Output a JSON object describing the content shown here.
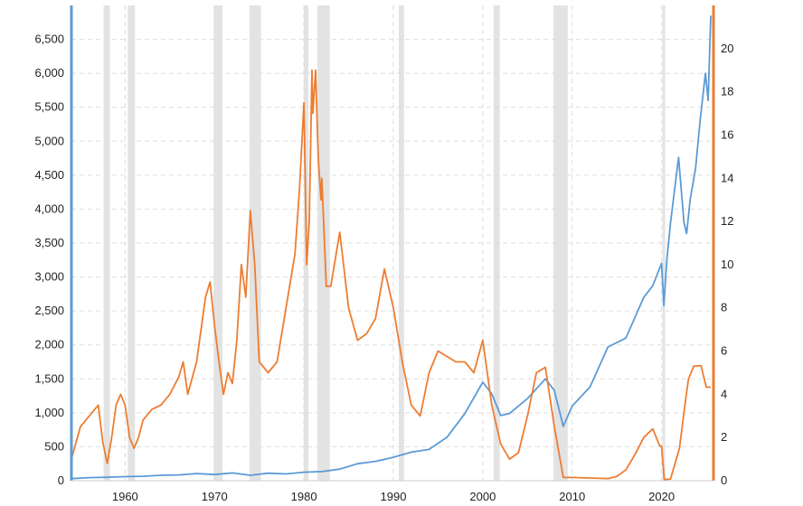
{
  "chart_data": {
    "type": "line",
    "title": "",
    "xlabel": "",
    "ylabel": "",
    "xlim": [
      1954,
      2025.8
    ],
    "ylim_left": [
      0,
      7000
    ],
    "ylim_right": [
      0,
      22
    ],
    "grid": true,
    "legend": "none",
    "x_ticks": [
      1960,
      1970,
      1980,
      1990,
      2000,
      2010,
      2020
    ],
    "y_left_ticks": [
      0,
      500,
      1000,
      1500,
      2000,
      2500,
      3000,
      3500,
      4000,
      4500,
      5000,
      5500,
      6000,
      6500
    ],
    "y_left_tick_labels": [
      "0",
      "500",
      "1,000",
      "1,500",
      "2,000",
      "2,500",
      "3,000",
      "3,500",
      "4,000",
      "4,500",
      "5,000",
      "5,500",
      "6,000",
      "6,500"
    ],
    "y_right_ticks": [
      0,
      2,
      4,
      6,
      8,
      10,
      12,
      14,
      16,
      18,
      20
    ],
    "recessions": [
      [
        1957.6,
        1958.3
      ],
      [
        1960.3,
        1961.1
      ],
      [
        1969.9,
        1970.9
      ],
      [
        1973.9,
        1975.2
      ],
      [
        1980.0,
        1980.5
      ],
      [
        1981.5,
        1982.9
      ],
      [
        1990.6,
        1991.2
      ],
      [
        2001.2,
        2001.9
      ],
      [
        2007.9,
        2009.5
      ],
      [
        2020.1,
        2020.4
      ]
    ],
    "series": [
      {
        "axis": "left",
        "color": "#5b9bd5",
        "x": [
          1954,
          1956,
          1958,
          1960,
          1962,
          1964,
          1966,
          1968,
          1970,
          1972,
          1974,
          1976,
          1978,
          1980,
          1982,
          1984,
          1986,
          1988,
          1990,
          1992,
          1994,
          1996,
          1998,
          2000,
          2001,
          2002,
          2003,
          2005,
          2007,
          2008,
          2009,
          2010,
          2012,
          2014,
          2016,
          2018,
          2019,
          2020,
          2020.25,
          2020.6,
          2021,
          2021.9,
          2022.5,
          2022.8,
          2023.2,
          2023.8,
          2024.3,
          2024.9,
          2025.2,
          2025.5
        ],
        "values": [
          30,
          45,
          50,
          60,
          65,
          80,
          85,
          105,
          90,
          115,
          80,
          110,
          100,
          125,
          135,
          170,
          250,
          285,
          345,
          420,
          460,
          640,
          990,
          1450,
          1280,
          960,
          990,
          1210,
          1500,
          1330,
          800,
          1100,
          1380,
          1970,
          2100,
          2700,
          2870,
          3200,
          2580,
          3280,
          3800,
          4760,
          3800,
          3640,
          4150,
          4600,
          5300,
          6000,
          5600,
          6850
        ]
      },
      {
        "axis": "right",
        "color": "#ed7d31",
        "x": [
          1954,
          1955,
          1956,
          1957,
          1957.5,
          1958,
          1958.5,
          1959,
          1959.5,
          1960,
          1960.5,
          1961,
          1961.5,
          1962,
          1963,
          1964,
          1965,
          1966,
          1966.5,
          1967,
          1968,
          1969,
          1969.5,
          1970,
          1970.5,
          1971,
          1971.5,
          1972,
          1972.5,
          1973,
          1973.5,
          1974,
          1974.5,
          1975,
          1976,
          1977,
          1978,
          1979,
          1979.5,
          1980,
          1980.3,
          1980.6,
          1980.9,
          1981,
          1981.3,
          1981.6,
          1981.9,
          1982,
          1982.5,
          1983,
          1984,
          1985,
          1986,
          1987,
          1988,
          1989,
          1990,
          1991,
          1992,
          1993,
          1994,
          1995,
          1997,
          1998,
          1999,
          2000,
          2001,
          2002,
          2003,
          2004,
          2005,
          2006,
          2007,
          2008,
          2009,
          2010,
          2014,
          2015,
          2016,
          2017,
          2018,
          2019,
          2019.8,
          2020,
          2020.3,
          2021,
          2022,
          2022.6,
          2023,
          2023.6,
          2024.4,
          2025,
          2025.5
        ],
        "values": [
          1.0,
          2.5,
          3.0,
          3.5,
          1.8,
          0.8,
          2.0,
          3.5,
          4.0,
          3.5,
          2.0,
          1.5,
          2.0,
          2.8,
          3.3,
          3.5,
          4.0,
          4.8,
          5.5,
          4.0,
          5.5,
          8.5,
          9.2,
          7.2,
          5.5,
          4.0,
          5.0,
          4.5,
          6.5,
          10.0,
          8.5,
          12.5,
          10.0,
          5.5,
          5.0,
          5.5,
          8.0,
          10.5,
          13.5,
          17.5,
          10.0,
          12.0,
          19.0,
          17.0,
          19.0,
          15.0,
          13.0,
          14.0,
          9.0,
          9.0,
          11.5,
          8.0,
          6.5,
          6.8,
          7.5,
          9.8,
          8.0,
          5.5,
          3.5,
          3.0,
          5.0,
          6.0,
          5.5,
          5.5,
          5.0,
          6.5,
          3.5,
          1.7,
          1.0,
          1.3,
          3.0,
          5.0,
          5.25,
          2.5,
          0.15,
          0.15,
          0.1,
          0.2,
          0.5,
          1.2,
          2.0,
          2.4,
          1.6,
          1.6,
          0.05,
          0.08,
          1.5,
          3.5,
          4.7,
          5.3,
          5.33,
          4.33,
          4.33
        ]
      }
    ]
  }
}
